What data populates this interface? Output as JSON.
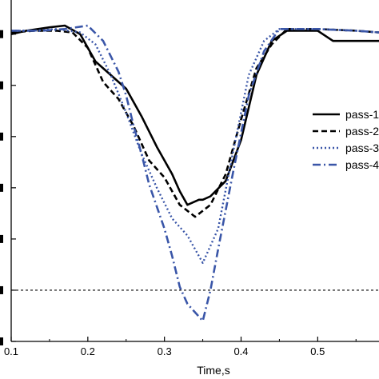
{
  "chart_data": {
    "type": "line",
    "xlabel": "Time,s",
    "ylabel": "",
    "xlim": [
      0.1,
      0.58
    ],
    "ylim": [
      0,
      1
    ],
    "x_ticks": [
      0.1,
      0.2,
      0.3,
      0.4,
      0.5
    ],
    "x_tick_labels": [
      "0.1",
      "0.2",
      "0.3",
      "0.4",
      "0.5"
    ],
    "y_ticks": [
      0.0,
      0.15,
      0.3,
      0.45,
      0.6,
      0.75,
      0.9
    ],
    "grid": false,
    "legend_position": "right",
    "reference_line": {
      "y": 0.15,
      "style": "dotted"
    },
    "series": [
      {
        "name": "pass-1",
        "style": "solid",
        "color": "#000000",
        "x": [
          0.1,
          0.12,
          0.15,
          0.17,
          0.19,
          0.21,
          0.23,
          0.25,
          0.27,
          0.29,
          0.31,
          0.32,
          0.33,
          0.345,
          0.35,
          0.36,
          0.38,
          0.4,
          0.42,
          0.44,
          0.46,
          0.5,
          0.52,
          0.55,
          0.58
        ],
        "y": [
          0.9,
          0.91,
          0.92,
          0.925,
          0.9,
          0.82,
          0.78,
          0.74,
          0.66,
          0.57,
          0.49,
          0.44,
          0.4,
          0.415,
          0.415,
          0.425,
          0.47,
          0.59,
          0.78,
          0.88,
          0.91,
          0.91,
          0.88,
          0.88,
          0.88
        ]
      },
      {
        "name": "pass-2",
        "style": "dashed",
        "color": "#000000",
        "x": [
          0.1,
          0.13,
          0.16,
          0.18,
          0.2,
          0.22,
          0.24,
          0.26,
          0.28,
          0.3,
          0.32,
          0.34,
          0.36,
          0.38,
          0.4,
          0.42,
          0.44,
          0.46,
          0.5,
          0.55,
          0.58
        ],
        "y": [
          0.905,
          0.91,
          0.91,
          0.905,
          0.86,
          0.76,
          0.71,
          0.63,
          0.53,
          0.48,
          0.4,
          0.365,
          0.4,
          0.49,
          0.65,
          0.8,
          0.87,
          0.915,
          0.915,
          0.91,
          0.905
        ]
      },
      {
        "name": "pass-3",
        "style": "dotted",
        "color": "#3a56a8",
        "x": [
          0.1,
          0.13,
          0.16,
          0.19,
          0.21,
          0.23,
          0.25,
          0.27,
          0.29,
          0.31,
          0.33,
          0.35,
          0.37,
          0.39,
          0.41,
          0.43,
          0.45,
          0.5,
          0.55,
          0.58
        ],
        "y": [
          0.91,
          0.91,
          0.915,
          0.905,
          0.87,
          0.78,
          0.67,
          0.55,
          0.45,
          0.36,
          0.31,
          0.23,
          0.33,
          0.56,
          0.78,
          0.88,
          0.915,
          0.915,
          0.91,
          0.905
        ]
      },
      {
        "name": "pass-4",
        "style": "dashdot",
        "color": "#3a56a8",
        "x": [
          0.1,
          0.14,
          0.17,
          0.2,
          0.22,
          0.24,
          0.25,
          0.26,
          0.27,
          0.28,
          0.3,
          0.31,
          0.32,
          0.33,
          0.35,
          0.36,
          0.37,
          0.39,
          0.41,
          0.43,
          0.45,
          0.5,
          0.55,
          0.58
        ],
        "y": [
          0.91,
          0.91,
          0.915,
          0.925,
          0.88,
          0.79,
          0.72,
          0.63,
          0.55,
          0.46,
          0.33,
          0.25,
          0.16,
          0.11,
          0.06,
          0.15,
          0.27,
          0.5,
          0.72,
          0.85,
          0.915,
          0.915,
          0.91,
          0.905
        ]
      }
    ]
  }
}
